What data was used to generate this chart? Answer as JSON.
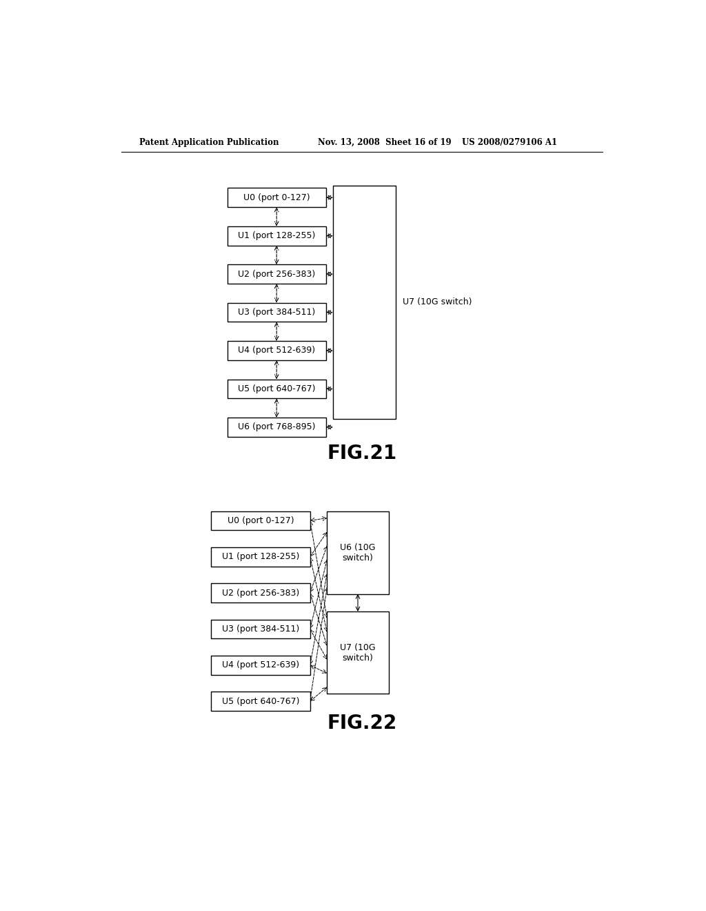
{
  "background_color": "#ffffff",
  "header_left": "Patent Application Publication",
  "header_mid": "Nov. 13, 2008  Sheet 16 of 19",
  "header_right": "US 2008/0279106 A1",
  "fig21_title": "FIG.21",
  "fig22_title": "FIG.22",
  "fig21_boxes": [
    "U0 (port 0-127)",
    "U1 (port 128-255)",
    "U2 (port 256-383)",
    "U3 (port 384-511)",
    "U4 (port 512-639)",
    "U5 (port 640-767)",
    "U6 (port 768-895)"
  ],
  "fig21_switch_label": "U7 (10G switch)",
  "fig22_boxes": [
    "U0 (port 0-127)",
    "U1 (port 128-255)",
    "U2 (port 256-383)",
    "U3 (port 384-511)",
    "U4 (port 512-639)",
    "U5 (port 640-767)"
  ],
  "fig22_switch1_label": "U6 (10G\nswitch)",
  "fig22_switch2_label": "U7 (10G\nswitch)"
}
